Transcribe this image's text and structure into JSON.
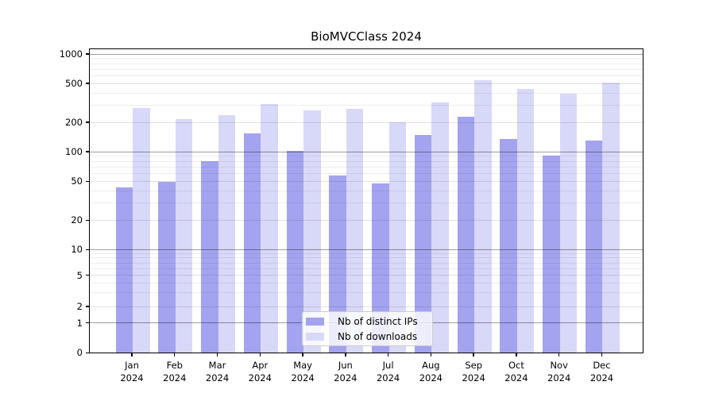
{
  "chart_data": {
    "type": "bar",
    "title": "BioMVCClass 2024",
    "x_categories": [
      "Jan",
      "Feb",
      "Mar",
      "Apr",
      "May",
      "Jun",
      "Jul",
      "Aug",
      "Sep",
      "Oct",
      "Nov",
      "Dec"
    ],
    "x_year": "2024",
    "series": [
      {
        "name": "Nb of distinct IPs",
        "color": "#a3a3f0",
        "values": [
          44,
          50,
          82,
          158,
          105,
          58,
          48,
          150,
          232,
          138,
          93,
          133
        ]
      },
      {
        "name": "Nb of downloads",
        "color": "#d8d8f8",
        "values": [
          287,
          221,
          242,
          314,
          272,
          280,
          205,
          327,
          550,
          445,
          402,
          520
        ]
      }
    ],
    "yticks": [
      0,
      1,
      2,
      5,
      10,
      20,
      50,
      100,
      200,
      500,
      1000
    ],
    "y_scale": "symlog",
    "ylim": [
      0,
      1140
    ],
    "xlabel": "",
    "ylabel": "",
    "grid": true,
    "legend_position": "lower center"
  }
}
